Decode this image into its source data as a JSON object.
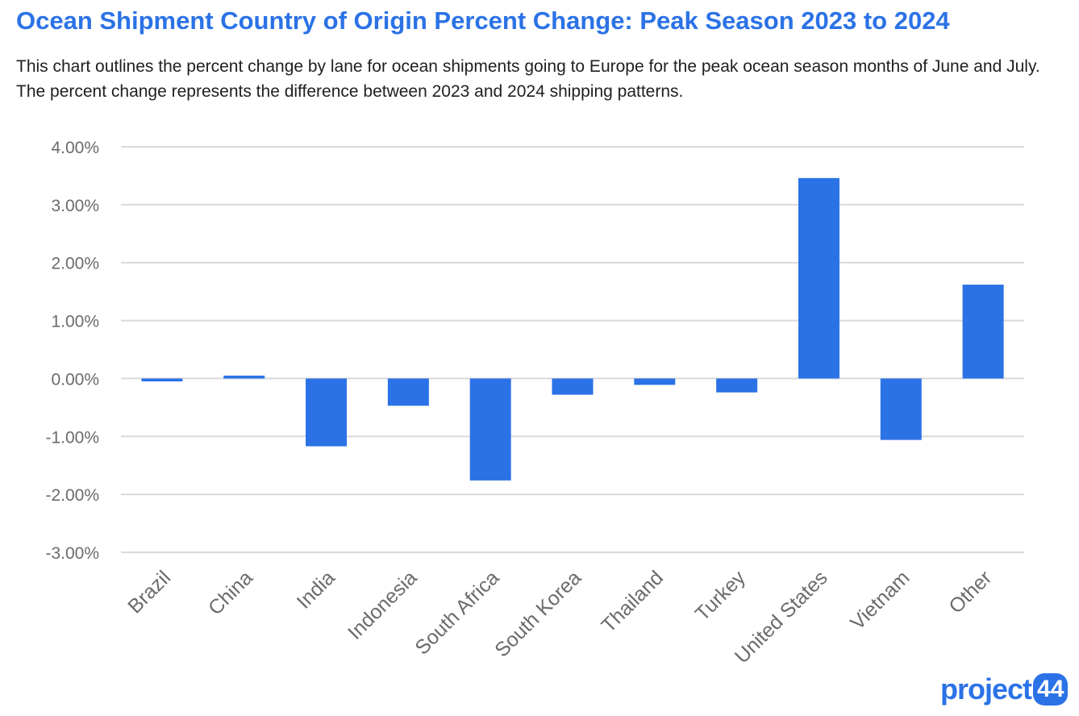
{
  "header": {
    "title": "Ocean Shipment Country of Origin Percent Change: Peak Season 2023 to 2024",
    "subtitle": "This chart outlines the percent change by lane for ocean shipments going to Europe for the peak ocean season months of June and July. The percent change represents the difference between 2023 and 2024 shipping patterns."
  },
  "chart_data": {
    "type": "bar",
    "title": "Ocean Shipment Country of Origin Percent Change: Peak Season 2023 to 2024",
    "xlabel": "",
    "ylabel": "",
    "categories": [
      "Brazil",
      "China",
      "India",
      "Indonesia",
      "South Africa",
      "South Korea",
      "Thailand",
      "Turkey",
      "United States",
      "Vietnam",
      "Other"
    ],
    "values": [
      -0.05,
      0.05,
      -1.17,
      -0.47,
      -1.76,
      -0.28,
      -0.11,
      -0.24,
      3.46,
      -1.06,
      1.62
    ],
    "ylim": [
      -3,
      4
    ],
    "yticks": [
      4,
      3,
      2,
      1,
      0,
      -1,
      -2,
      -3
    ],
    "ytick_labels": [
      "4.00%",
      "3.00%",
      "2.00%",
      "1.00%",
      "0.00%",
      "-1.00%",
      "-2.00%",
      "-3.00%"
    ],
    "grid": true,
    "legend": "none",
    "bar_color": "#2b72e6",
    "grid_color": "#d9d9d9"
  },
  "logo": {
    "text": "project",
    "badge": "44"
  },
  "colors": {
    "accent": "#2b72e6",
    "text": "#1f1f1f",
    "axis_text": "#6b6b6b"
  }
}
